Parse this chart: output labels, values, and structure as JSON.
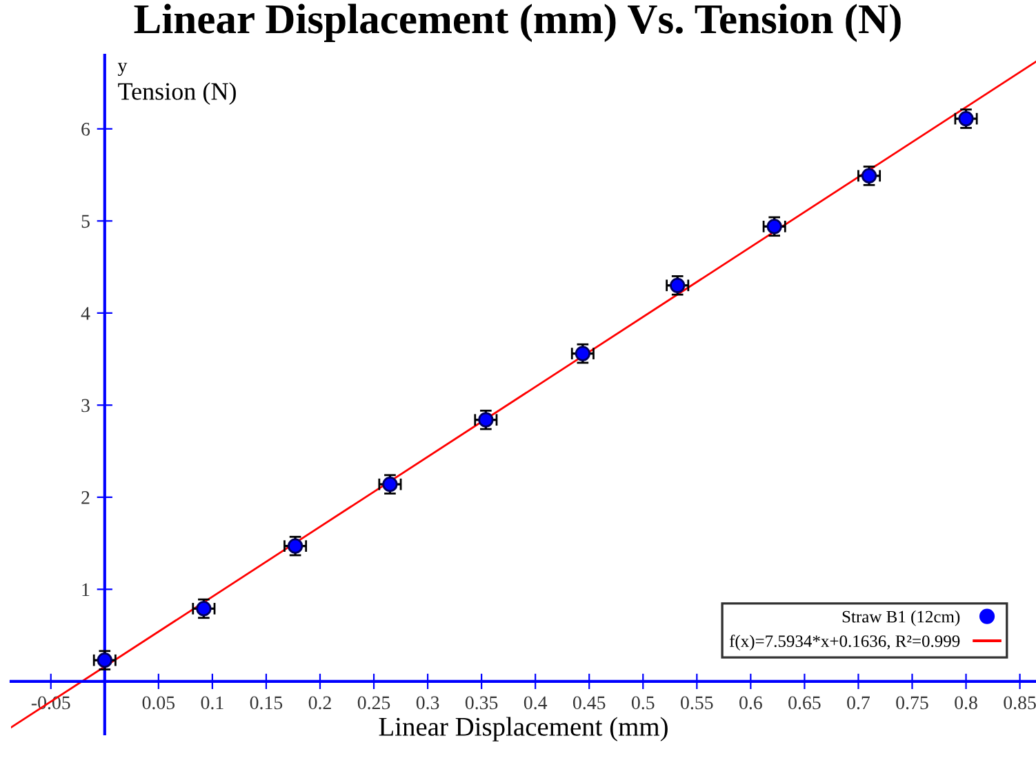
{
  "chart_data": {
    "type": "scatter",
    "title": "Linear Displacement (mm) Vs. Tension (N)",
    "xlabel": "Linear Displacement (mm)",
    "ylabel": "Tension (N)",
    "annotations": [
      "y"
    ],
    "xlim": [
      -0.087,
      0.865
    ],
    "ylim": [
      -0.57,
      6.8
    ],
    "xticks": [
      -0.05,
      0.05,
      0.1,
      0.15,
      0.2,
      0.25,
      0.3,
      0.35,
      0.4,
      0.45,
      0.5,
      0.55,
      0.6,
      0.65,
      0.7,
      0.75,
      0.8,
      0.85
    ],
    "yticks": [
      1,
      2,
      3,
      4,
      5,
      6
    ],
    "grid": false,
    "legend": "bottom right",
    "series": [
      {
        "name": "Straw B1 (12cm)",
        "marker": "circle",
        "color": "#0000ff",
        "x": [
          0,
          0.092,
          0.177,
          0.265,
          0.354,
          0.444,
          0.532,
          0.622,
          0.71,
          0.8
        ],
        "values": [
          0.23,
          0.79,
          1.47,
          2.14,
          2.84,
          3.56,
          4.3,
          4.94,
          5.49,
          6.11
        ],
        "errors": [
          0.1,
          0.1,
          0.1,
          0.1,
          0.1,
          0.1,
          0.1,
          0.1,
          0.1,
          0.1
        ],
        "xerrors": [
          0.01,
          0.01,
          0.01,
          0.01,
          0.01,
          0.01,
          0.01,
          0.01,
          0.01,
          0.01
        ]
      },
      {
        "name": "f(x)=7.5934*x+0.1636, R²=0.999",
        "type": "line",
        "color": "#ff0000",
        "x": [
          -0.087,
          0.865
        ],
        "values": [
          -0.5,
          6.73
        ]
      }
    ]
  }
}
